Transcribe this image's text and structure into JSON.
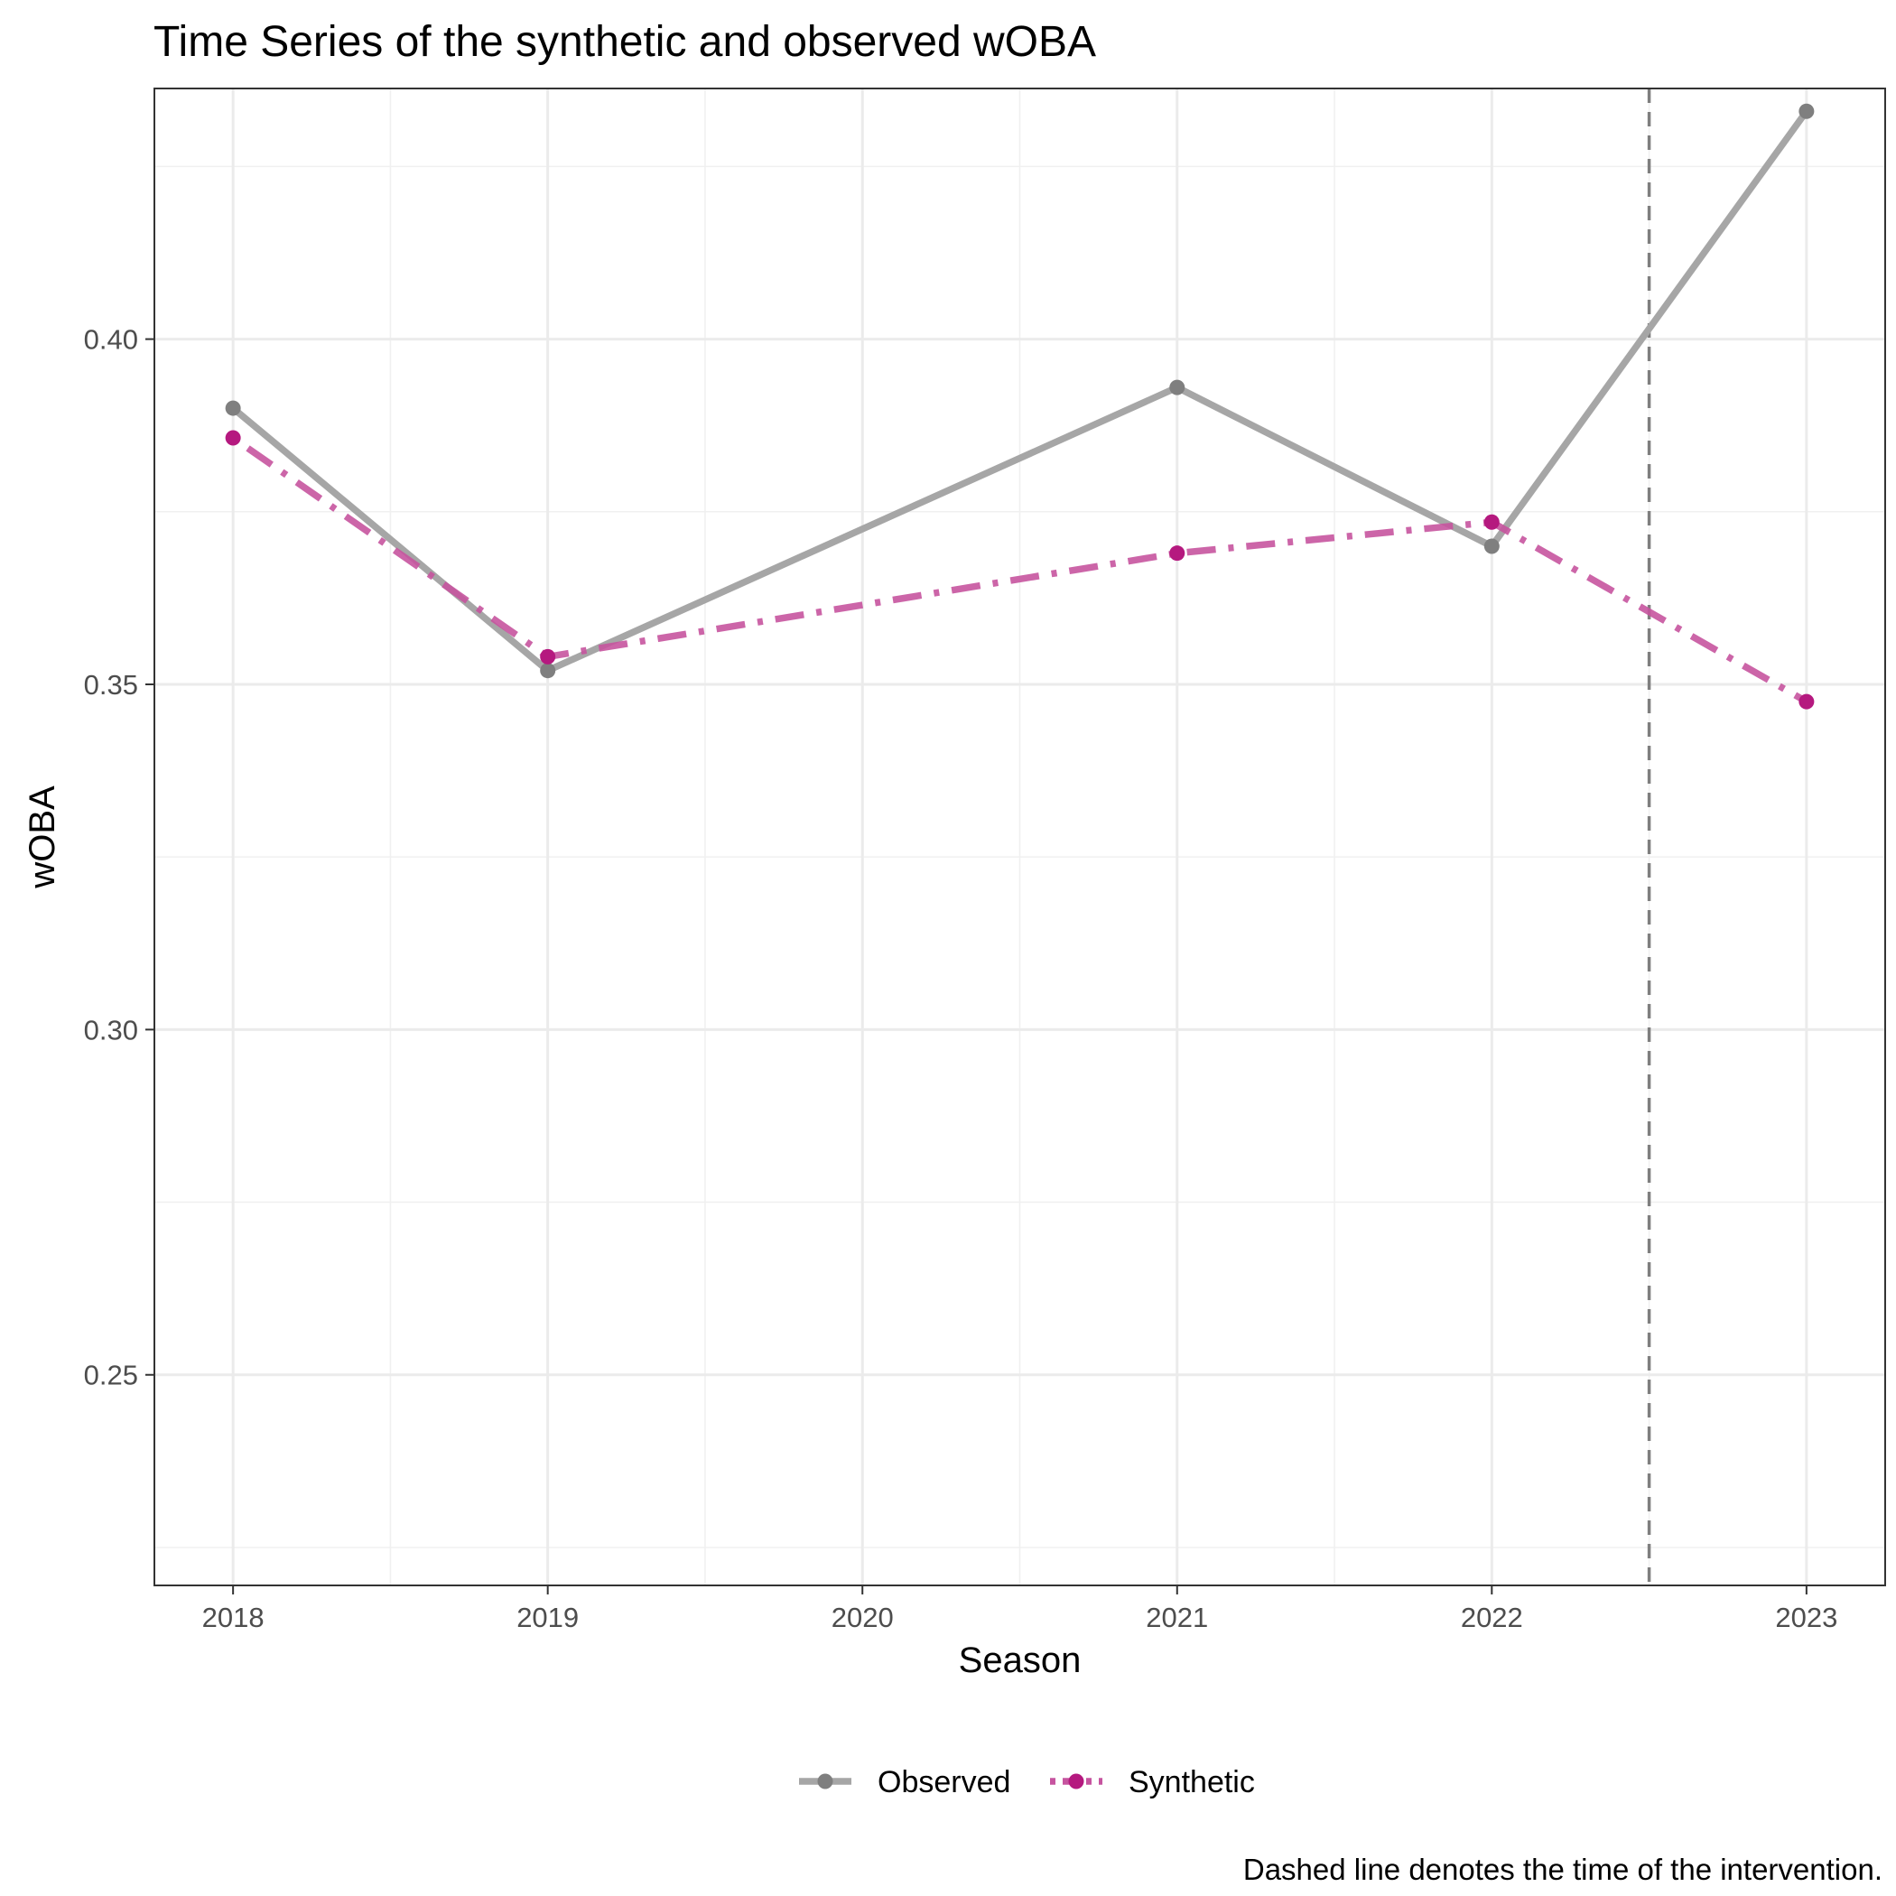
{
  "chart_data": {
    "type": "line",
    "title": "Time Series of the synthetic and observed wOBA",
    "xlabel": "Season",
    "ylabel": "wOBA",
    "caption": "Dashed line denotes the time of the intervention.",
    "x": [
      2018,
      2019,
      2020,
      2021,
      2022,
      2023
    ],
    "x_tick_labels": [
      "2018",
      "2019",
      "2020",
      "2021",
      "2022",
      "2023"
    ],
    "xlim": [
      2017.75,
      2023.25
    ],
    "ylim": [
      0.2195,
      0.4363
    ],
    "y_ticks": [
      0.25,
      0.3,
      0.35,
      0.4
    ],
    "y_tick_labels": [
      "0.25",
      "0.30",
      "0.35",
      "0.40"
    ],
    "grid": true,
    "legend_position": "bottom",
    "intervention_x": 2022.5,
    "intervention_color": "#7f7f7f",
    "series": [
      {
        "name": "Observed",
        "color": "#a6a6a6",
        "point_color": "#7f7f7f",
        "line_style": "solid",
        "points": [
          {
            "x": 2018,
            "y": 0.39
          },
          {
            "x": 2019,
            "y": 0.352
          },
          {
            "x": 2021,
            "y": 0.393
          },
          {
            "x": 2022,
            "y": 0.37
          },
          {
            "x": 2023,
            "y": 0.433
          }
        ]
      },
      {
        "name": "Synthetic",
        "color": "#c6549f",
        "point_color": "#b5197f",
        "line_style": "dotdash",
        "points": [
          {
            "x": 2018,
            "y": 0.3857
          },
          {
            "x": 2019,
            "y": 0.354
          },
          {
            "x": 2021,
            "y": 0.369
          },
          {
            "x": 2022,
            "y": 0.3735
          },
          {
            "x": 2023,
            "y": 0.3475
          }
        ]
      }
    ]
  }
}
